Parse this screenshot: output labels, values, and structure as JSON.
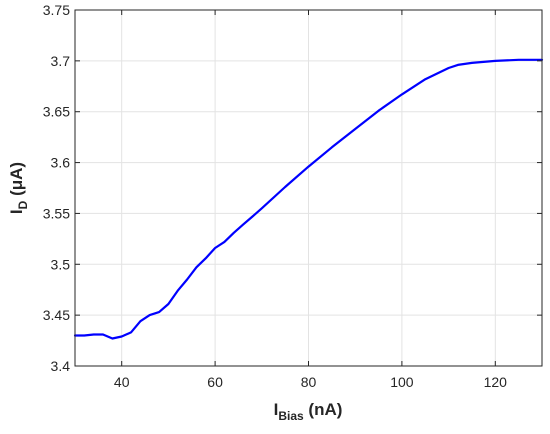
{
  "chart_data": {
    "type": "line",
    "xlabel": {
      "main": "I",
      "sub": "Bias",
      "unit": " (nA)"
    },
    "ylabel": {
      "main": "I",
      "sub": "D",
      "unit": " (μA)"
    },
    "xlim": [
      30,
      130
    ],
    "ylim": [
      3.4,
      3.75
    ],
    "xticks": [
      "40",
      "60",
      "80",
      "100",
      "120"
    ],
    "yticks": [
      "3.4",
      "3.45",
      "3.5",
      "3.55",
      "3.6",
      "3.65",
      "3.7",
      "3.75"
    ],
    "grid": true,
    "line_color": "#0000ff",
    "series": [
      {
        "x": [
          30,
          32,
          34,
          36,
          38,
          40,
          42,
          44,
          46,
          48,
          50,
          52,
          54,
          56,
          58,
          60,
          62,
          64,
          66,
          68,
          70,
          75,
          80,
          85,
          90,
          95,
          100,
          105,
          110,
          112,
          115,
          120,
          125,
          130
        ],
        "y": [
          3.43,
          3.43,
          3.431,
          3.431,
          3.427,
          3.429,
          3.433,
          3.444,
          3.45,
          3.453,
          3.461,
          3.474,
          3.485,
          3.497,
          3.506,
          3.516,
          3.522,
          3.531,
          3.539,
          3.547,
          3.555,
          3.576,
          3.596,
          3.615,
          3.633,
          3.651,
          3.667,
          3.682,
          3.693,
          3.696,
          3.698,
          3.7,
          3.701,
          3.701
        ]
      }
    ]
  }
}
